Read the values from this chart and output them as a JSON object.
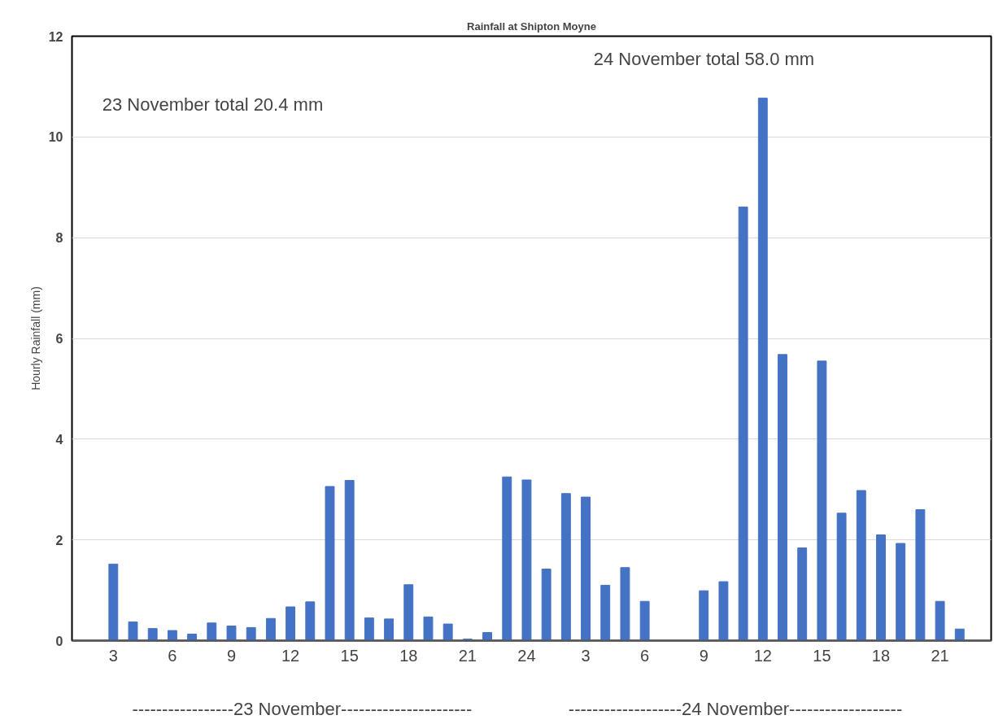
{
  "chart_data": {
    "type": "bar",
    "title": "Rainfall at Shipton Moyne",
    "ylabel": "Hourly Rainfall (mm)",
    "categories": [
      "3",
      null,
      null,
      "6",
      null,
      null,
      "9",
      null,
      null,
      "12",
      null,
      null,
      "15",
      null,
      null,
      "18",
      null,
      null,
      "21",
      null,
      null,
      "24",
      null,
      null,
      "3",
      null,
      null,
      "6",
      null,
      null,
      "9",
      null,
      null,
      "12",
      null,
      null,
      "15",
      null,
      null,
      "18",
      null,
      null,
      "21",
      null
    ],
    "values": [
      1.52,
      0.37,
      0.24,
      0.2,
      0.13,
      0.35,
      0.29,
      0.26,
      0.44,
      0.67,
      0.77,
      3.06,
      3.18,
      0.45,
      0.43,
      1.11,
      0.47,
      0.33,
      0.03,
      0.16,
      3.25,
      3.19,
      1.42,
      2.92,
      2.85,
      1.1,
      1.45,
      0.78,
      0,
      0,
      0.99,
      1.17,
      8.61,
      10.77,
      5.68,
      1.84,
      5.55,
      2.53,
      2.98,
      2.1,
      1.93,
      2.6,
      0.78,
      0.23
    ],
    "color": "#4472c4",
    "ylim": [
      0,
      12
    ],
    "yticks": [
      0,
      2,
      4,
      6,
      8,
      10,
      12
    ],
    "grid": "y",
    "annotations": [
      "23 November total 20.4 mm",
      "24 November total 58.0 mm",
      "-----------------23 November----------------------",
      "-------------------24 November-------------------"
    ]
  }
}
